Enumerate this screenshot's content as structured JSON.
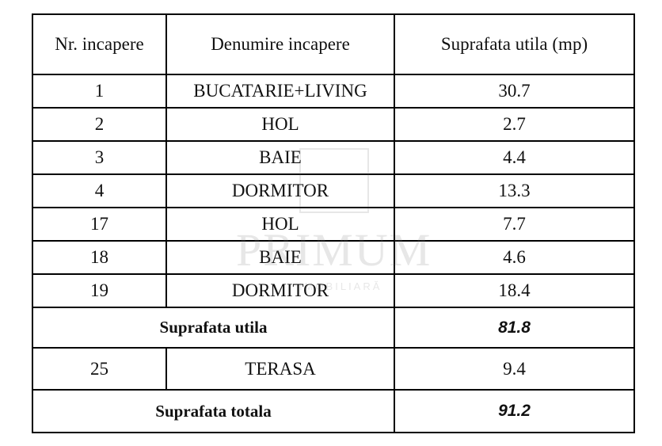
{
  "table": {
    "header": [
      "Nr. incapere",
      "Denumire incapere",
      "Suprafata utila (mp)"
    ],
    "rows": [
      [
        "1",
        "BUCATARIE+LIVING",
        "30.7"
      ],
      [
        "2",
        "HOL",
        "2.7"
      ],
      [
        "3",
        "BAIE",
        "4.4"
      ],
      [
        "4",
        "DORMITOR",
        "13.3"
      ],
      [
        "17",
        "HOL",
        "7.7"
      ],
      [
        "18",
        "BAIE",
        "4.6"
      ],
      [
        "19",
        "DORMITOR",
        "18.4"
      ]
    ],
    "subtotal": {
      "label": "Suprafata utila",
      "value": "81.8"
    },
    "extra_row": [
      "25",
      "TERASA",
      "9.4"
    ],
    "total": {
      "label": "Suprafata totala",
      "value": "91.2"
    }
  },
  "watermark": {
    "brand": "PRIMUM",
    "tagline": "IMOBILIARĂ"
  }
}
